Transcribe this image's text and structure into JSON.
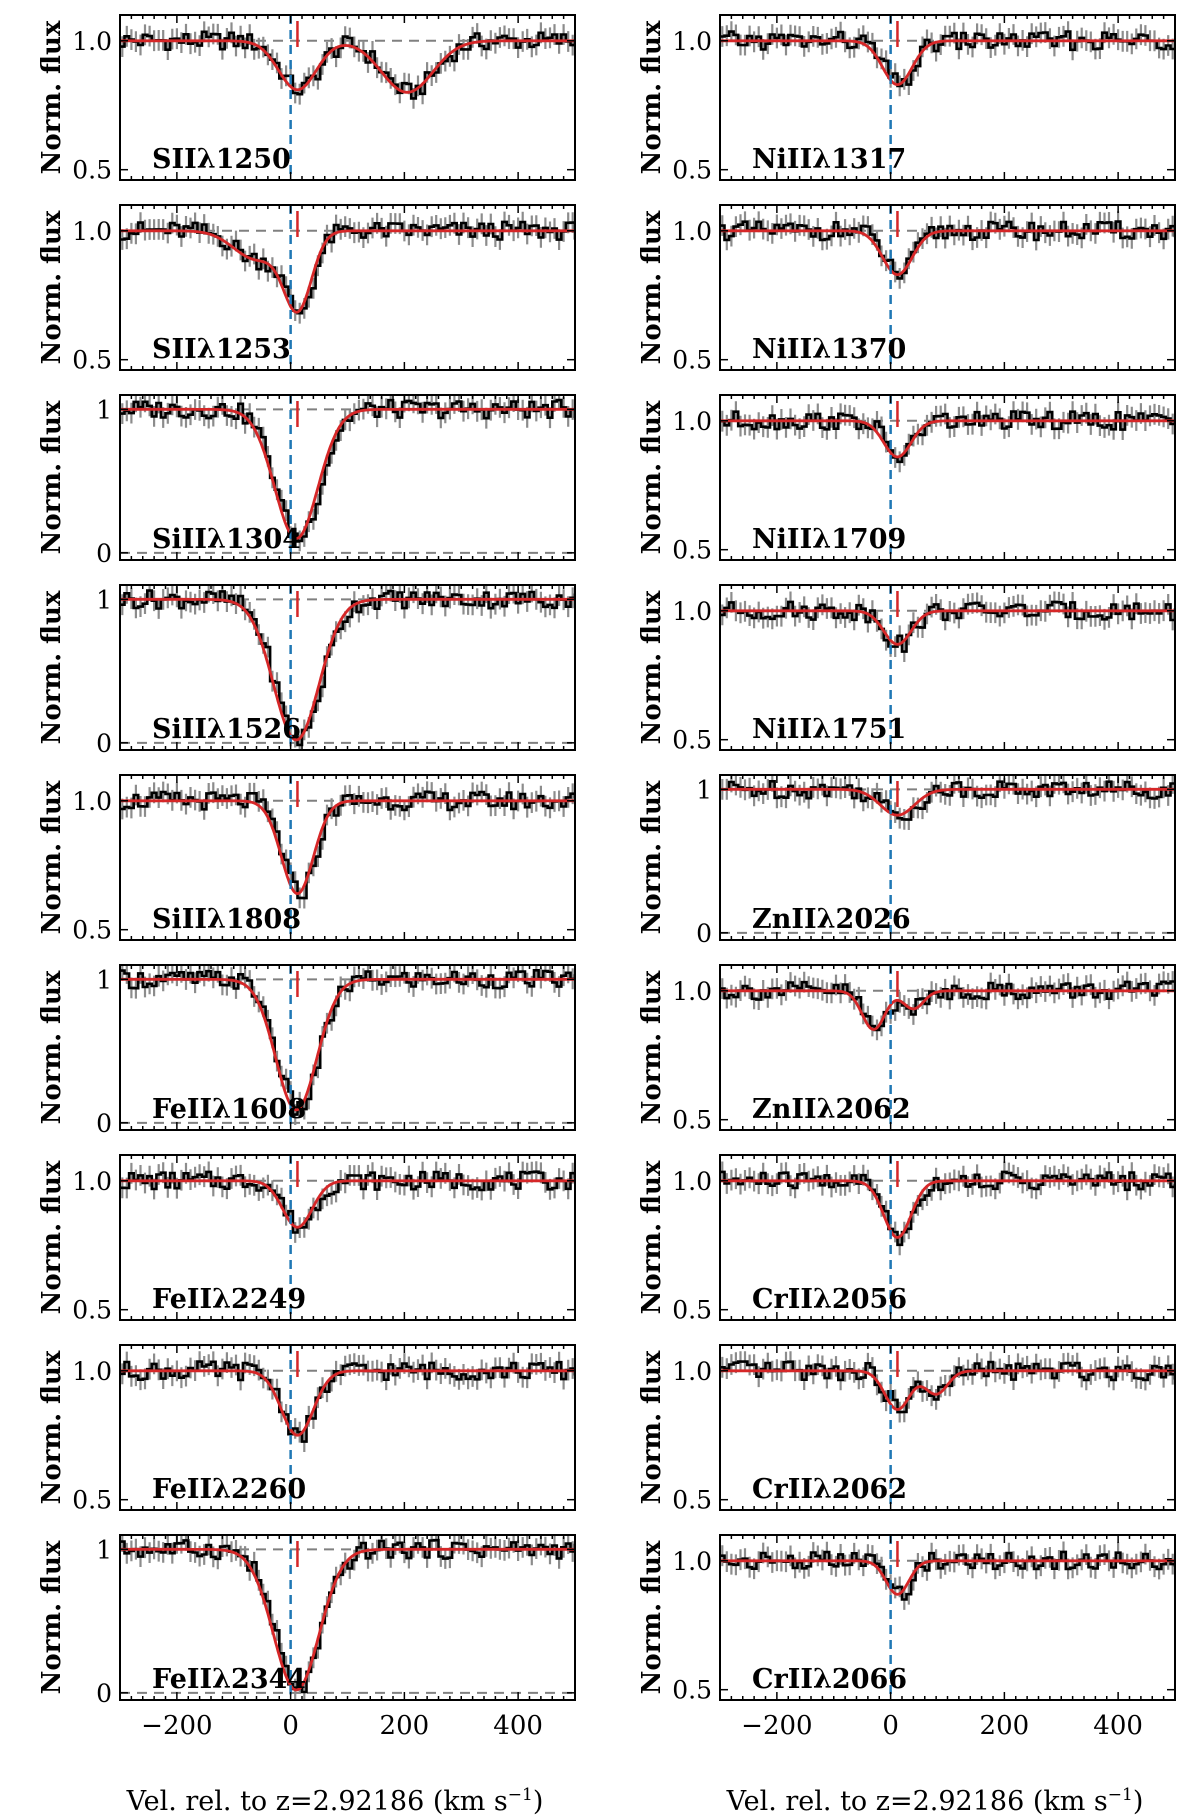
{
  "chart_data": {
    "type": "line",
    "title": "",
    "xlabel": "Vel. rel. to z=2.92186 (km s",
    "xlabel_sup": "−1",
    "xlabel_tail": ")",
    "ylabel": "Norm. flux",
    "xlim": [
      -300,
      500
    ],
    "x_ticks": [
      -200,
      0,
      200,
      400
    ],
    "x_tick_labels": [
      "−200",
      "0",
      "200",
      "400"
    ],
    "colors": {
      "data": "#000000",
      "error": "#8c8c8c",
      "model": "#d62728",
      "v0_line": "#1f77b4",
      "ref": "#808080"
    },
    "panels": [
      {
        "column": "left",
        "label": "SIIλ1250",
        "ylim": [
          0.46,
          1.1
        ],
        "yticks": [
          1.0,
          0.5
        ],
        "ytick_labels": [
          "1.0",
          "0.5"
        ],
        "zero_line": false,
        "components": [
          {
            "v": 12,
            "depth": 0.19,
            "sigma": 33
          },
          {
            "v": 205,
            "depth": 0.2,
            "sigma": 45
          }
        ]
      },
      {
        "column": "left",
        "label": "SIIλ1253",
        "ylim": [
          0.46,
          1.1
        ],
        "yticks": [
          1.0,
          0.5
        ],
        "ytick_labels": [
          "1.0",
          "0.5"
        ],
        "zero_line": false,
        "components": [
          {
            "v": 12,
            "depth": 0.3,
            "sigma": 25
          },
          {
            "v": -60,
            "depth": 0.11,
            "sigma": 40
          }
        ]
      },
      {
        "column": "left",
        "label": "SiIIλ1304",
        "ylim": [
          -0.05,
          1.1
        ],
        "yticks": [
          1,
          0
        ],
        "ytick_labels": [
          "1",
          "0"
        ],
        "zero_line": true,
        "components": [
          {
            "v": 10,
            "depth": 0.9,
            "sigma": 38
          }
        ]
      },
      {
        "column": "left",
        "label": "SiIIλ1526",
        "ylim": [
          -0.05,
          1.1
        ],
        "yticks": [
          1,
          0
        ],
        "ytick_labels": [
          "1",
          "0"
        ],
        "zero_line": true,
        "components": [
          {
            "v": 10,
            "depth": 0.98,
            "sigma": 40
          }
        ]
      },
      {
        "column": "left",
        "label": "SiIIλ1808",
        "ylim": [
          0.46,
          1.1
        ],
        "yticks": [
          1.0,
          0.5
        ],
        "ytick_labels": [
          "1.0",
          "0.5"
        ],
        "zero_line": false,
        "components": [
          {
            "v": 12,
            "depth": 0.36,
            "sigma": 28
          }
        ]
      },
      {
        "column": "left",
        "label": "FeIIλ1608",
        "ylim": [
          -0.05,
          1.1
        ],
        "yticks": [
          1,
          0
        ],
        "ytick_labels": [
          "1",
          "0"
        ],
        "zero_line": true,
        "components": [
          {
            "v": 10,
            "depth": 0.91,
            "sigma": 36
          }
        ]
      },
      {
        "column": "left",
        "label": "FeIIλ2249",
        "ylim": [
          0.46,
          1.1
        ],
        "yticks": [
          1.0,
          0.5
        ],
        "ytick_labels": [
          "1.0",
          "0.5"
        ],
        "zero_line": false,
        "components": [
          {
            "v": 12,
            "depth": 0.18,
            "sigma": 26
          }
        ]
      },
      {
        "column": "left",
        "label": "FeIIλ2260",
        "ylim": [
          0.46,
          1.1
        ],
        "yticks": [
          1.0,
          0.5
        ],
        "ytick_labels": [
          "1.0",
          "0.5"
        ],
        "zero_line": false,
        "components": [
          {
            "v": 12,
            "depth": 0.25,
            "sigma": 28
          }
        ]
      },
      {
        "column": "left",
        "label": "FeIIλ2344",
        "ylim": [
          -0.05,
          1.1
        ],
        "yticks": [
          1,
          0
        ],
        "ytick_labels": [
          "1",
          "0"
        ],
        "zero_line": true,
        "components": [
          {
            "v": 10,
            "depth": 0.98,
            "sigma": 40
          }
        ]
      },
      {
        "column": "right",
        "label": "NiIIλ1317",
        "ylim": [
          0.46,
          1.1
        ],
        "yticks": [
          1.0,
          0.5
        ],
        "ytick_labels": [
          "1.0",
          "0.5"
        ],
        "zero_line": false,
        "components": [
          {
            "v": 12,
            "depth": 0.17,
            "sigma": 26
          }
        ]
      },
      {
        "column": "right",
        "label": "NiIIλ1370",
        "ylim": [
          0.46,
          1.1
        ],
        "yticks": [
          1.0,
          0.5
        ],
        "ytick_labels": [
          "1.0",
          "0.5"
        ],
        "zero_line": false,
        "components": [
          {
            "v": 12,
            "depth": 0.17,
            "sigma": 26
          }
        ]
      },
      {
        "column": "right",
        "label": "NiIIλ1709",
        "ylim": [
          0.46,
          1.1
        ],
        "yticks": [
          1.0,
          0.5
        ],
        "ytick_labels": [
          "1.0",
          "0.5"
        ],
        "zero_line": false,
        "components": [
          {
            "v": 12,
            "depth": 0.14,
            "sigma": 24
          }
        ]
      },
      {
        "column": "right",
        "label": "NiIIλ1751",
        "ylim": [
          0.46,
          1.1
        ],
        "yticks": [
          1.0,
          0.5
        ],
        "ytick_labels": [
          "1.0",
          "0.5"
        ],
        "zero_line": false,
        "components": [
          {
            "v": 12,
            "depth": 0.13,
            "sigma": 24
          }
        ]
      },
      {
        "column": "right",
        "label": "ZnIIλ2026",
        "ylim": [
          -0.05,
          1.1
        ],
        "yticks": [
          1,
          0
        ],
        "ytick_labels": [
          "1",
          "0"
        ],
        "zero_line": true,
        "components": [
          {
            "v": 12,
            "depth": 0.18,
            "sigma": 30
          }
        ]
      },
      {
        "column": "right",
        "label": "ZnIIλ2062",
        "ylim": [
          0.46,
          1.1
        ],
        "yticks": [
          1.0,
          0.5
        ],
        "ytick_labels": [
          "1.0",
          "0.5"
        ],
        "zero_line": false,
        "components": [
          {
            "v": -30,
            "depth": 0.15,
            "sigma": 20
          },
          {
            "v": 40,
            "depth": 0.07,
            "sigma": 18
          }
        ]
      },
      {
        "column": "right",
        "label": "CrIIλ2056",
        "ylim": [
          0.46,
          1.1
        ],
        "yticks": [
          1.0,
          0.5
        ],
        "ytick_labels": [
          "1.0",
          "0.5"
        ],
        "zero_line": false,
        "components": [
          {
            "v": 12,
            "depth": 0.22,
            "sigma": 24
          }
        ]
      },
      {
        "column": "right",
        "label": "CrIIλ2062",
        "ylim": [
          0.46,
          1.1
        ],
        "yticks": [
          1.0,
          0.5
        ],
        "ytick_labels": [
          "1.0",
          "0.5"
        ],
        "zero_line": false,
        "components": [
          {
            "v": 12,
            "depth": 0.15,
            "sigma": 22
          },
          {
            "v": 80,
            "depth": 0.09,
            "sigma": 20
          }
        ]
      },
      {
        "column": "right",
        "label": "CrIIλ2066",
        "ylim": [
          0.46,
          1.1
        ],
        "yticks": [
          1.0,
          0.5
        ],
        "ytick_labels": [
          "1.0",
          "0.5"
        ],
        "zero_line": false,
        "components": [
          {
            "v": 12,
            "depth": 0.13,
            "sigma": 20
          }
        ]
      }
    ]
  }
}
